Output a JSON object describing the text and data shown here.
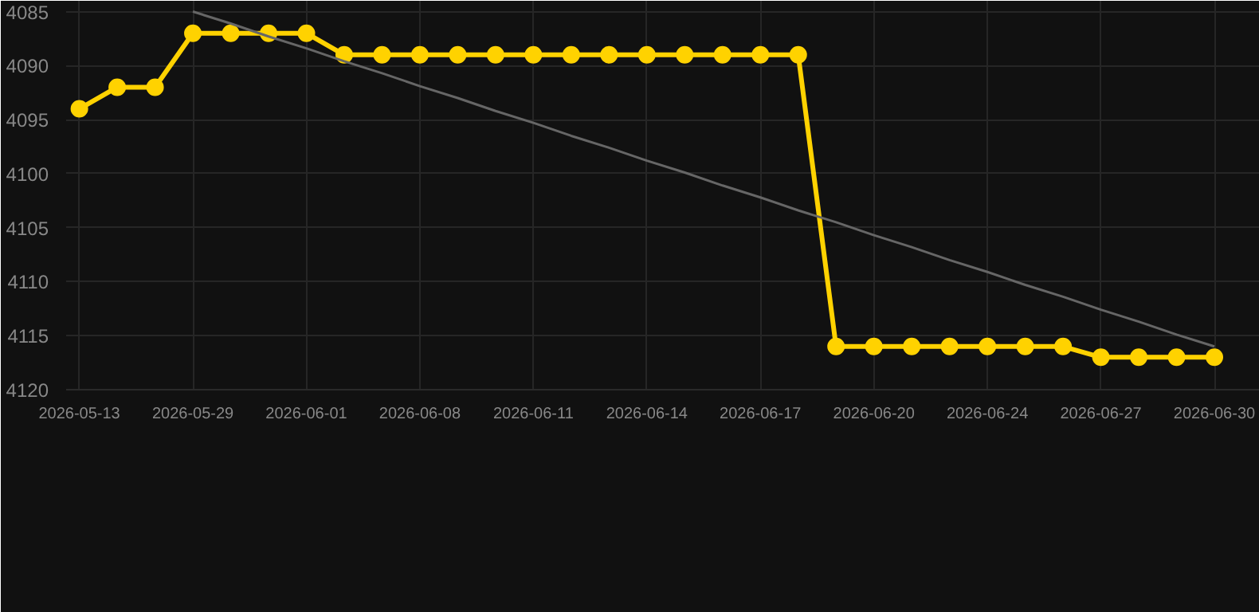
{
  "chart_data": {
    "type": "line",
    "categories": [
      "2026-05-13",
      null,
      null,
      "2026-05-29",
      null,
      null,
      "2026-06-01",
      null,
      null,
      "2026-06-08",
      null,
      null,
      "2026-06-11",
      null,
      null,
      "2026-06-14",
      null,
      null,
      "2026-06-17",
      null,
      null,
      "2026-06-20",
      null,
      null,
      "2026-06-24",
      null,
      null,
      "2026-06-27",
      null,
      null,
      "2026-06-30"
    ],
    "series": [
      {
        "color": "#ffd200",
        "values": [
          4094,
          4092,
          4092,
          4087,
          4087,
          4087,
          4087,
          4089,
          4089,
          4089,
          4089,
          4089,
          4089,
          4089,
          4089,
          4089,
          4089,
          4089,
          4089,
          4089,
          4116,
          4116,
          4116,
          4116,
          4116,
          4116,
          4116,
          4117,
          4117,
          4117,
          4117
        ]
      },
      {
        "type": "line",
        "color": "#666666",
        "marker": "none",
        "values": [
          null,
          null,
          null,
          4085.0,
          4086.1,
          4087.3,
          4088.4,
          4089.6,
          4090.7,
          4091.9,
          4093.0,
          4094.2,
          4095.3,
          4096.5,
          4097.6,
          4098.8,
          4099.9,
          4101.1,
          4102.2,
          4103.4,
          4104.5,
          4105.7,
          4106.8,
          4108.0,
          4109.1,
          4110.3,
          4111.4,
          4112.6,
          4113.7,
          4114.9,
          4116.0
        ]
      }
    ],
    "ylim": [
      4120,
      4084
    ],
    "yticks": [
      4085,
      4090,
      4095,
      4100,
      4105,
      4110,
      4115,
      4120
    ],
    "grid": true,
    "marker": "circle",
    "line_style": "solid"
  }
}
